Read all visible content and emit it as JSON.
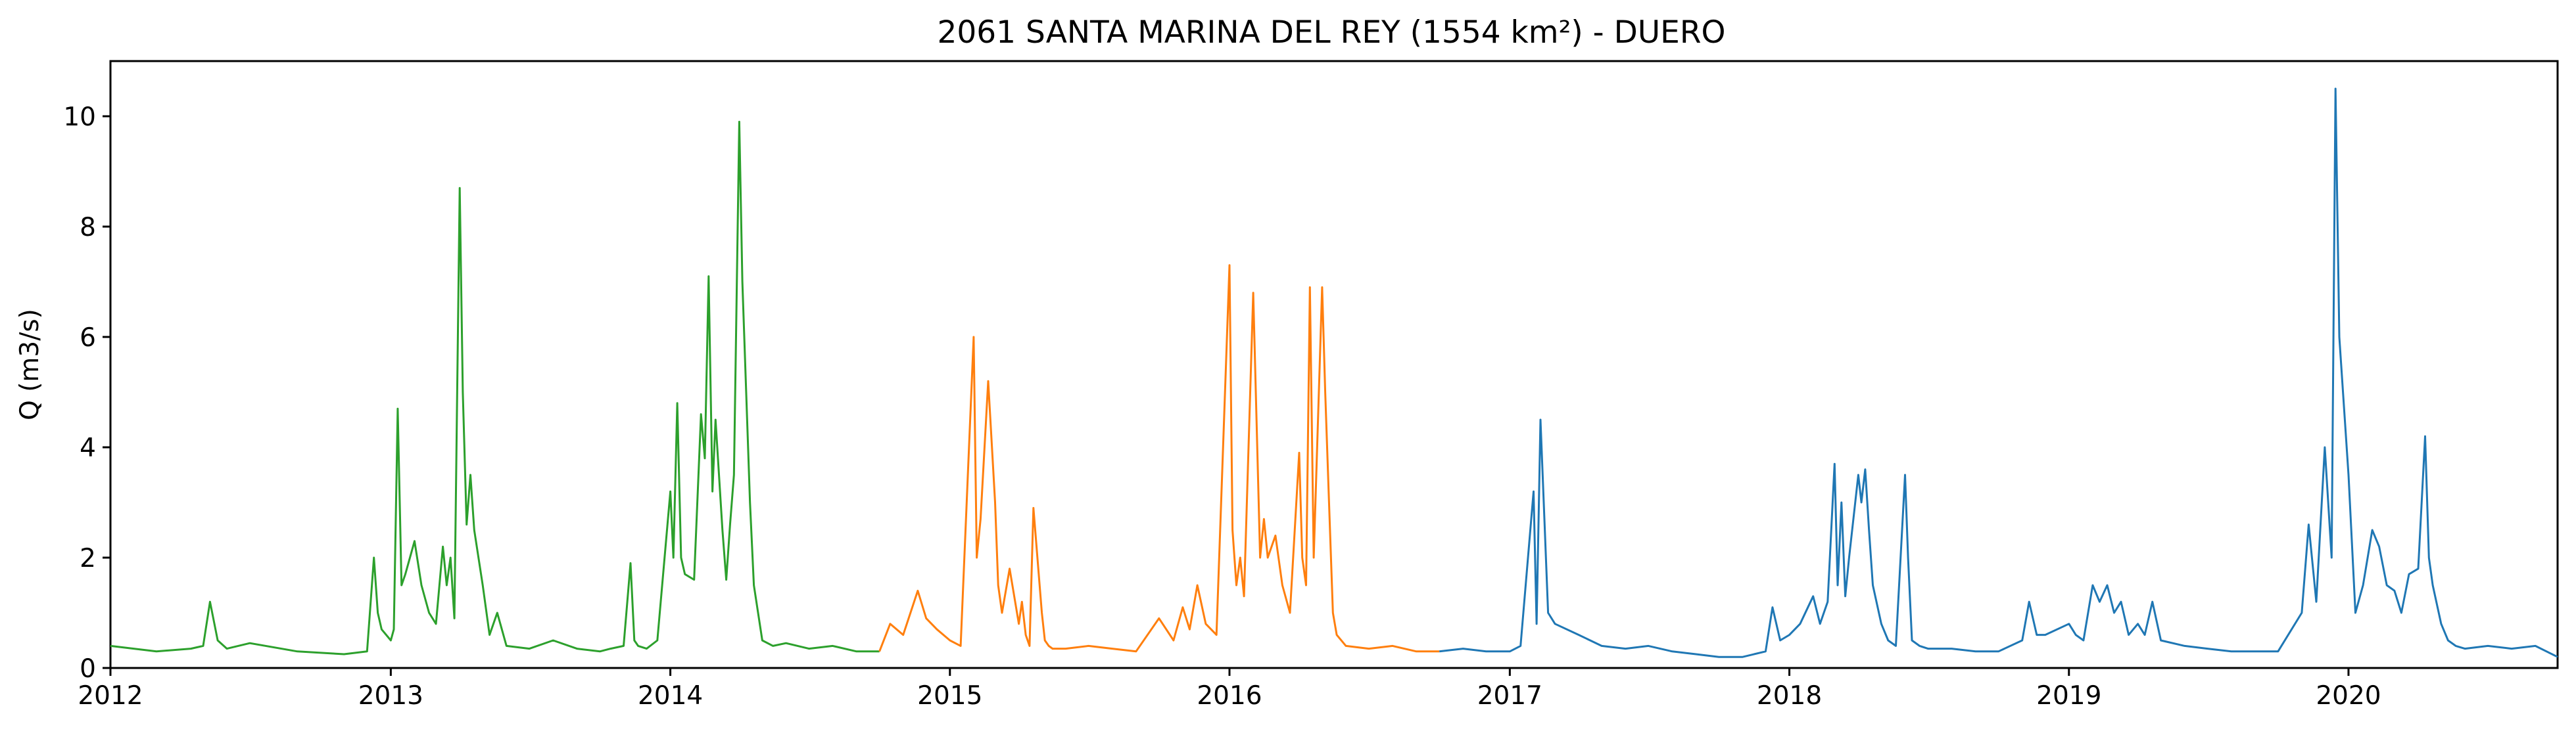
{
  "chart_data": {
    "type": "line",
    "title": "2061 SANTA MARINA DEL REY (1554 km²) - DUERO",
    "xlabel": "",
    "ylabel": "Q (m3/s)",
    "x_tick_labels": [
      "2012",
      "2013",
      "2014",
      "2015",
      "2016",
      "2017",
      "2018",
      "2019",
      "2020"
    ],
    "y_tick_labels": [
      "0",
      "2",
      "4",
      "6",
      "8",
      "10"
    ],
    "xlim": [
      "2012-01-01",
      "2020-09-30"
    ],
    "ylim": [
      0,
      11
    ],
    "grid": false,
    "legend": "none",
    "series": [
      {
        "color": "#2ca02c",
        "x": [
          "2012-01-01",
          "2012-03-01",
          "2012-04-15",
          "2012-05-01",
          "2012-05-10",
          "2012-05-20",
          "2012-06-01",
          "2012-07-01",
          "2012-09-01",
          "2012-11-01",
          "2012-12-01",
          "2012-12-10",
          "2012-12-15",
          "2012-12-20",
          "2013-01-01",
          "2013-01-05",
          "2013-01-10",
          "2013-01-15",
          "2013-01-20",
          "2013-02-01",
          "2013-02-10",
          "2013-02-20",
          "2013-03-01",
          "2013-03-10",
          "2013-03-15",
          "2013-03-20",
          "2013-03-25",
          "2013-04-01",
          "2013-04-05",
          "2013-04-10",
          "2013-04-15",
          "2013-04-20",
          "2013-05-01",
          "2013-05-10",
          "2013-05-20",
          "2013-06-01",
          "2013-07-01",
          "2013-08-01",
          "2013-09-01",
          "2013-10-01",
          "2013-10-15",
          "2013-11-01",
          "2013-11-10",
          "2013-11-15",
          "2013-11-20",
          "2013-12-01",
          "2013-12-15",
          "2014-01-01",
          "2014-01-05",
          "2014-01-10",
          "2014-01-15",
          "2014-01-20",
          "2014-02-01",
          "2014-02-10",
          "2014-02-15",
          "2014-02-20",
          "2014-02-25",
          "2014-03-01",
          "2014-03-10",
          "2014-03-15",
          "2014-03-20",
          "2014-03-25",
          "2014-04-01",
          "2014-04-05",
          "2014-04-10",
          "2014-04-15",
          "2014-04-20",
          "2014-05-01",
          "2014-05-15",
          "2014-06-01",
          "2014-07-01",
          "2014-08-01",
          "2014-09-01",
          "2014-10-01"
        ],
        "values": [
          0.4,
          0.3,
          0.35,
          0.4,
          1.2,
          0.5,
          0.35,
          0.45,
          0.3,
          0.25,
          0.3,
          2.0,
          1.0,
          0.7,
          0.5,
          0.7,
          4.7,
          1.5,
          1.7,
          2.3,
          1.5,
          1.0,
          0.8,
          2.2,
          1.5,
          2.0,
          0.9,
          8.7,
          5.0,
          2.6,
          3.5,
          2.5,
          1.5,
          0.6,
          1.0,
          0.4,
          0.35,
          0.5,
          0.35,
          0.3,
          0.35,
          0.4,
          1.9,
          0.5,
          0.4,
          0.35,
          0.5,
          3.2,
          2.0,
          4.8,
          2.0,
          1.7,
          1.6,
          4.6,
          3.8,
          7.1,
          3.2,
          4.5,
          2.5,
          1.6,
          2.6,
          3.5,
          9.9,
          7.0,
          5.0,
          3.0,
          1.5,
          0.5,
          0.4,
          0.45,
          0.35,
          0.4,
          0.3,
          0.3
        ]
      },
      {
        "color": "#ff7f0e",
        "x": [
          "2014-10-01",
          "2014-10-15",
          "2014-11-01",
          "2014-11-20",
          "2014-12-01",
          "2014-12-15",
          "2015-01-01",
          "2015-01-15",
          "2015-02-01",
          "2015-02-05",
          "2015-02-10",
          "2015-02-20",
          "2015-03-01",
          "2015-03-05",
          "2015-03-10",
          "2015-03-20",
          "2015-04-01",
          "2015-04-05",
          "2015-04-10",
          "2015-04-15",
          "2015-04-20",
          "2015-05-01",
          "2015-05-05",
          "2015-05-10",
          "2015-05-15",
          "2015-06-01",
          "2015-07-01",
          "2015-08-01",
          "2015-09-01",
          "2015-10-01",
          "2015-10-20",
          "2015-11-01",
          "2015-11-10",
          "2015-11-20",
          "2015-12-01",
          "2015-12-15",
          "2016-01-01",
          "2016-01-05",
          "2016-01-10",
          "2016-01-15",
          "2016-01-20",
          "2016-02-01",
          "2016-02-10",
          "2016-02-15",
          "2016-02-20",
          "2016-03-01",
          "2016-03-10",
          "2016-03-20",
          "2016-04-01",
          "2016-04-05",
          "2016-04-10",
          "2016-04-15",
          "2016-04-20",
          "2016-05-01",
          "2016-05-05",
          "2016-05-10",
          "2016-05-15",
          "2016-05-20",
          "2016-06-01",
          "2016-07-01",
          "2016-08-01",
          "2016-09-01",
          "2016-10-01"
        ],
        "values": [
          0.3,
          0.8,
          0.6,
          1.4,
          0.9,
          0.7,
          0.5,
          0.4,
          6.0,
          2.0,
          2.7,
          5.2,
          3.0,
          1.5,
          1.0,
          1.8,
          0.8,
          1.2,
          0.6,
          0.4,
          2.9,
          1.0,
          0.5,
          0.4,
          0.35,
          0.35,
          0.4,
          0.35,
          0.3,
          0.9,
          0.5,
          1.1,
          0.7,
          1.5,
          0.8,
          0.6,
          7.3,
          2.5,
          1.5,
          2.0,
          1.3,
          6.8,
          2.0,
          2.7,
          2.0,
          2.4,
          1.5,
          1.0,
          3.9,
          2.0,
          1.5,
          6.9,
          2.0,
          6.9,
          5.0,
          3.0,
          1.0,
          0.6,
          0.4,
          0.35,
          0.4,
          0.3,
          0.3
        ]
      },
      {
        "color": "#1f77b4",
        "x": [
          "2016-10-01",
          "2016-11-01",
          "2016-12-01",
          "2017-01-01",
          "2017-01-15",
          "2017-02-01",
          "2017-02-05",
          "2017-02-10",
          "2017-02-20",
          "2017-03-01",
          "2017-04-01",
          "2017-05-01",
          "2017-06-01",
          "2017-07-01",
          "2017-08-01",
          "2017-09-01",
          "2017-10-01",
          "2017-11-01",
          "2017-12-01",
          "2017-12-10",
          "2017-12-20",
          "2018-01-01",
          "2018-01-15",
          "2018-02-01",
          "2018-02-10",
          "2018-02-20",
          "2018-03-01",
          "2018-03-05",
          "2018-03-10",
          "2018-03-15",
          "2018-03-20",
          "2018-04-01",
          "2018-04-05",
          "2018-04-10",
          "2018-04-15",
          "2018-04-20",
          "2018-05-01",
          "2018-05-10",
          "2018-05-20",
          "2018-06-01",
          "2018-06-05",
          "2018-06-10",
          "2018-06-20",
          "2018-07-01",
          "2018-08-01",
          "2018-09-01",
          "2018-10-01",
          "2018-11-01",
          "2018-11-10",
          "2018-11-20",
          "2018-12-01",
          "2019-01-01",
          "2019-01-10",
          "2019-01-20",
          "2019-02-01",
          "2019-02-10",
          "2019-02-20",
          "2019-03-01",
          "2019-03-10",
          "2019-03-20",
          "2019-04-01",
          "2019-04-10",
          "2019-04-20",
          "2019-05-01",
          "2019-06-01",
          "2019-07-01",
          "2019-08-01",
          "2019-09-01",
          "2019-10-01",
          "2019-11-01",
          "2019-11-10",
          "2019-11-20",
          "2019-12-01",
          "2019-12-10",
          "2019-12-15",
          "2019-12-20",
          "2020-01-01",
          "2020-01-10",
          "2020-01-20",
          "2020-02-01",
          "2020-02-10",
          "2020-02-20",
          "2020-03-01",
          "2020-03-10",
          "2020-03-20",
          "2020-04-01",
          "2020-04-10",
          "2020-04-15",
          "2020-04-20",
          "2020-05-01",
          "2020-05-10",
          "2020-05-20",
          "2020-06-01",
          "2020-07-01",
          "2020-08-01",
          "2020-09-01",
          "2020-09-30"
        ],
        "values": [
          0.3,
          0.35,
          0.3,
          0.3,
          0.4,
          3.2,
          0.8,
          4.5,
          1.0,
          0.8,
          0.6,
          0.4,
          0.35,
          0.4,
          0.3,
          0.25,
          0.2,
          0.2,
          0.3,
          1.1,
          0.5,
          0.6,
          0.8,
          1.3,
          0.8,
          1.2,
          3.7,
          1.5,
          3.0,
          1.3,
          2.0,
          3.5,
          3.0,
          3.6,
          2.5,
          1.5,
          0.8,
          0.5,
          0.4,
          3.5,
          2.0,
          0.5,
          0.4,
          0.35,
          0.35,
          0.3,
          0.3,
          0.5,
          1.2,
          0.6,
          0.6,
          0.8,
          0.6,
          0.5,
          1.5,
          1.2,
          1.5,
          1.0,
          1.2,
          0.6,
          0.8,
          0.6,
          1.2,
          0.5,
          0.4,
          0.35,
          0.3,
          0.3,
          0.3,
          1.0,
          2.6,
          1.2,
          4.0,
          2.0,
          10.5,
          6.0,
          3.5,
          1.0,
          1.5,
          2.5,
          2.2,
          1.5,
          1.4,
          1.0,
          1.7,
          1.8,
          4.2,
          2.0,
          1.5,
          0.8,
          0.5,
          0.4,
          0.35,
          0.4,
          0.35,
          0.4,
          0.2
        ]
      }
    ]
  }
}
